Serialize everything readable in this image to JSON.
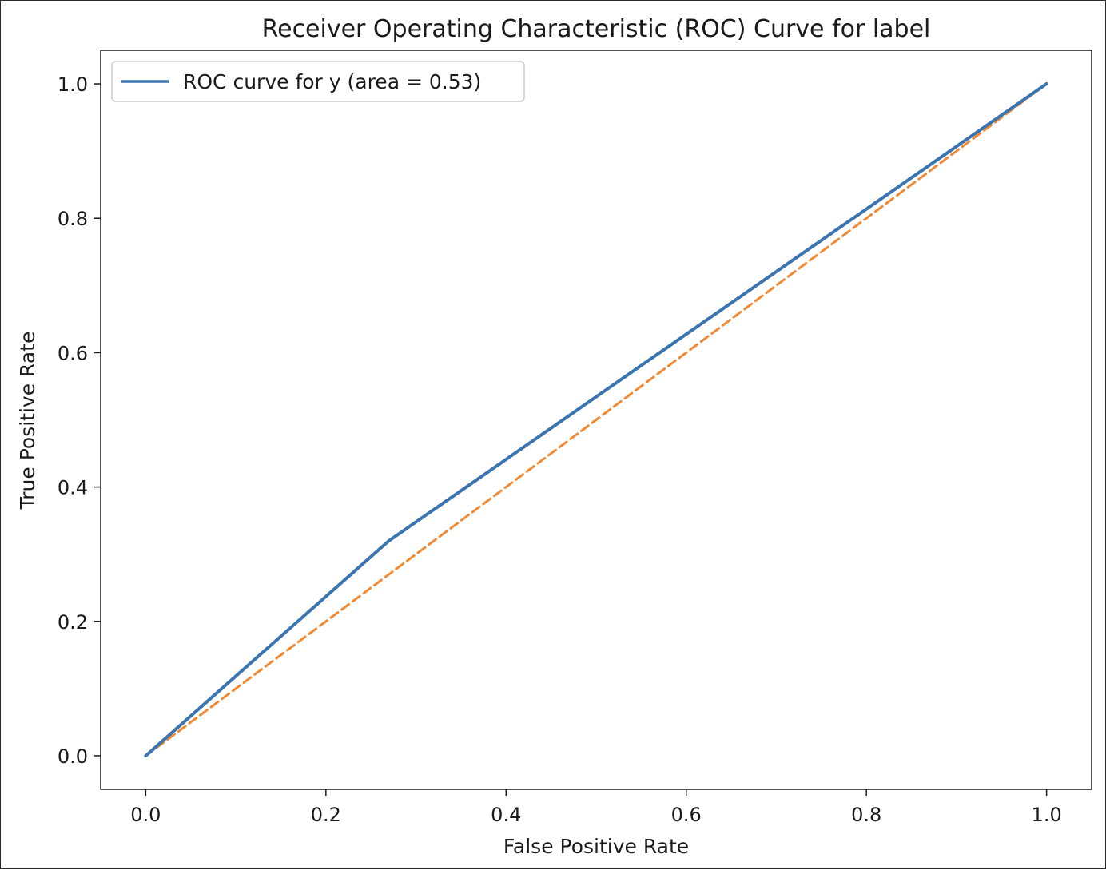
{
  "chart_data": {
    "type": "line",
    "title": "Receiver Operating Characteristic (ROC) Curve for label",
    "xlabel": "False Positive Rate",
    "ylabel": "True Positive Rate",
    "xlim": [
      -0.05,
      1.05
    ],
    "ylim": [
      -0.05,
      1.05
    ],
    "xticks": [
      "0.0",
      "0.2",
      "0.4",
      "0.6",
      "0.8",
      "1.0"
    ],
    "yticks": [
      "0.0",
      "0.2",
      "0.4",
      "0.6",
      "0.8",
      "1.0"
    ],
    "grid": false,
    "legend_position": "top-left",
    "series": [
      {
        "name": "ROC curve for y (area = 0.53)",
        "color": "#3a75b0",
        "style": "solid",
        "x": [
          0.0,
          0.27,
          1.0
        ],
        "y": [
          0.0,
          0.32,
          1.0
        ]
      },
      {
        "color": "#f08a34",
        "style": "dashed",
        "x": [
          0.0,
          1.0
        ],
        "y": [
          0.0,
          1.0
        ]
      }
    ]
  }
}
